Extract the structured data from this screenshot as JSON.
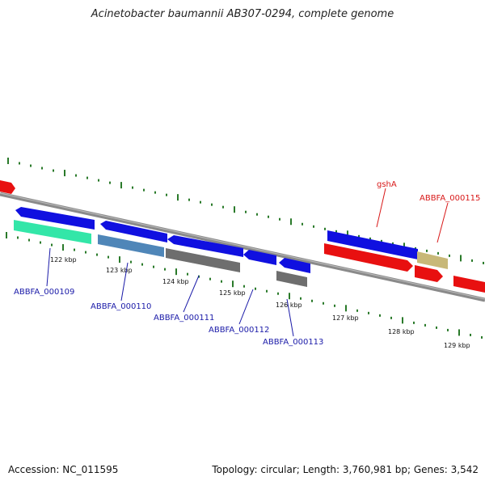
{
  "title": "Acinetobacter baumannii AB307-0294, complete genome",
  "footer": {
    "accession": "Accession: NC_011595",
    "genome_info": "Topology: circular; Length: 3,760,981 bp; Genes: 3,542"
  },
  "colors": {
    "forward_gene": "#1010e0",
    "rrna_gene": "#33e6a8",
    "steelblue_gene": "#4f86b8",
    "gray_gene": "#6e6e6e",
    "red_gene": "#e81010",
    "khaki_gene": "#c8b878",
    "backbone": "#8a8a8a",
    "tick": "#2a7a2a",
    "label_blue": "#1a1aa8",
    "label_red": "#d81818"
  },
  "tick_labels": [
    "122 kbp",
    "123 kbp",
    "124 kbp",
    "125 kbp",
    "126 kbp",
    "127 kbp",
    "128 kbp",
    "129 kbp"
  ],
  "gene_labels": {
    "ABBFA_000109": "ABBFA_000109",
    "ABBFA_000110": "ABBFA_000110",
    "ABBFA_000111": "ABBFA_000111",
    "ABBFA_000112": "ABBFA_000112",
    "ABBFA_000113": "ABBFA_000113",
    "gshA": "gshA",
    "ABBFA_000115": "ABBFA_000115"
  }
}
